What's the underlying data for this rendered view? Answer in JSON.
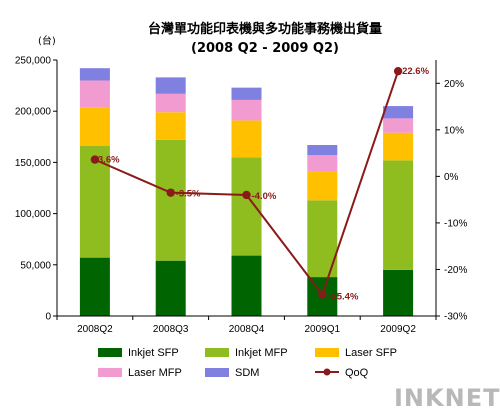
{
  "chart_data": {
    "type": "bar",
    "stacked": true,
    "title": "台灣單功能印表機與多功能事務機出貨量",
    "subtitle": "(2008 Q2 - 2009 Q2)",
    "y_unit": "(台)",
    "categories": [
      "2008Q2",
      "2008Q3",
      "2008Q4",
      "2009Q1",
      "2009Q2"
    ],
    "series": [
      {
        "name": "Inkjet SFP",
        "color": "#006400",
        "values": [
          57000,
          54000,
          59000,
          38000,
          45000
        ]
      },
      {
        "name": "Inkjet MFP",
        "color": "#8fbc1f",
        "values": [
          109000,
          118000,
          96000,
          75000,
          107000
        ]
      },
      {
        "name": "Laser SFP",
        "color": "#ffc000",
        "values": [
          38000,
          27000,
          36000,
          28000,
          27000
        ]
      },
      {
        "name": "Laser MFP",
        "color": "#f29bd0",
        "values": [
          26000,
          18000,
          20000,
          16000,
          14000
        ]
      },
      {
        "name": "SDM",
        "color": "#8080e0",
        "values": [
          12000,
          16000,
          12000,
          10000,
          12000
        ]
      }
    ],
    "line": {
      "name": "QoQ",
      "color": "#8b1a1a",
      "values": [
        3.6,
        -3.5,
        -4.0,
        -25.4,
        22.6
      ],
      "labels": [
        "3.6%",
        "-3.5%",
        "-4.0%",
        "-25.4%",
        "22.6%"
      ]
    },
    "y_left": {
      "min": 0,
      "max": 250000,
      "ticks": [
        "0",
        "50,000",
        "100,000",
        "150,000",
        "200,000",
        "250,000"
      ]
    },
    "y_right": {
      "min": -30,
      "max": 25,
      "ticks": [
        "-30%",
        "-20%",
        "-10%",
        "0%",
        "10%",
        "20%"
      ]
    },
    "legend_position": "bottom",
    "grid": false
  },
  "watermark": "INKNET"
}
